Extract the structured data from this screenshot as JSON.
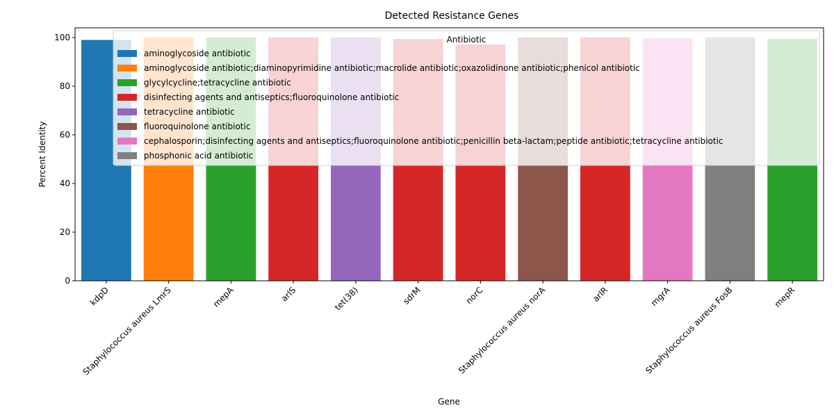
{
  "chart_data": {
    "type": "bar",
    "title": "Detected Resistance Genes",
    "xlabel": "Gene",
    "ylabel": "Percent Identity",
    "ylim": [
      0,
      104
    ],
    "yticks": [
      0,
      20,
      40,
      60,
      80,
      100
    ],
    "grid": false,
    "legend": {
      "title": "Antibiotic",
      "placement": "top-right",
      "entries": [
        {
          "label": "aminoglycoside antibiotic",
          "color": "#1f77b4"
        },
        {
          "label": "aminoglycoside antibiotic;diaminopyrimidine antibiotic;macrolide antibiotic;oxazolidinone antibiotic;phenicol antibiotic",
          "color": "#ff7f0e"
        },
        {
          "label": "glycylcycline;tetracycline antibiotic",
          "color": "#2ca02c"
        },
        {
          "label": "disinfecting agents and antiseptics;fluoroquinolone antibiotic",
          "color": "#d62728"
        },
        {
          "label": "tetracycline antibiotic",
          "color": "#9467bd"
        },
        {
          "label": "fluoroquinolone antibiotic",
          "color": "#8c564b"
        },
        {
          "label": "cephalosporin;disinfecting agents and antiseptics;fluoroquinolone antibiotic;penicillin beta-lactam;peptide antibiotic;tetracycline antibiotic",
          "color": "#e377c2"
        },
        {
          "label": "phosphonic acid antibiotic",
          "color": "#7f7f7f"
        }
      ]
    },
    "categories": [
      "kdpD",
      "Staphylococcus aureus LmrS",
      "mepA",
      "arlS",
      "tet(38)",
      "sdrM",
      "norC",
      "Staphylococcus aureus norA",
      "arlR",
      "mgrA",
      "Staphylococcus aureus FosB",
      "mepR"
    ],
    "values": [
      99.0,
      100.0,
      100.0,
      100.0,
      100.0,
      99.4,
      97.1,
      100.0,
      100.0,
      99.7,
      100.0,
      99.5
    ],
    "bar_antibiotic_index": [
      0,
      1,
      2,
      3,
      4,
      3,
      3,
      5,
      3,
      6,
      7,
      2
    ]
  }
}
